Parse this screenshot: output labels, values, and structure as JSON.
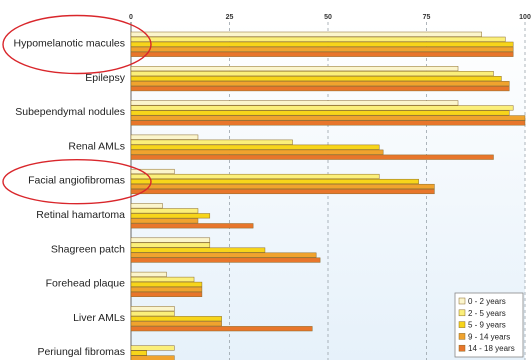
{
  "chart_data": {
    "type": "bar",
    "orientation": "horizontal",
    "title": "",
    "xlabel": "",
    "ylabel": "",
    "xlim": [
      0,
      100
    ],
    "xticks": [
      0,
      25,
      50,
      75,
      100
    ],
    "grid": true,
    "legend_position": "bottom-right",
    "categories": [
      "Hypomelanotic macules",
      "Epilepsy",
      "Subependymal nodules",
      "Renal AMLs",
      "Facial angiofibromas",
      "Retinal hamartoma",
      "Shagreen patch",
      "Forehead plaque",
      "Liver AMLs",
      "Periungal fibromas"
    ],
    "highlighted_categories": [
      "Hypomelanotic macules",
      "Facial angiofibromas"
    ],
    "series": [
      {
        "name": "0 - 2 years",
        "color": "#fbf5cc",
        "values": [
          89,
          83,
          83,
          17,
          11,
          8,
          20,
          9,
          11,
          0
        ]
      },
      {
        "name": "2 - 5 years",
        "color": "#fbef7a",
        "values": [
          95,
          92,
          97,
          41,
          63,
          17,
          20,
          16,
          11,
          11
        ]
      },
      {
        "name": "5 - 9 years",
        "color": "#f7d51a",
        "values": [
          97,
          94,
          96,
          63,
          73,
          20,
          34,
          18,
          23,
          4
        ]
      },
      {
        "name": "9 - 14 years",
        "color": "#f0a32e",
        "values": [
          97,
          96,
          100,
          64,
          77,
          17,
          47,
          18,
          23,
          11
        ]
      },
      {
        "name": "14 - 18 years",
        "color": "#e8762b",
        "values": [
          97,
          96,
          100,
          92,
          77,
          31,
          48,
          18,
          46,
          15
        ]
      }
    ]
  }
}
